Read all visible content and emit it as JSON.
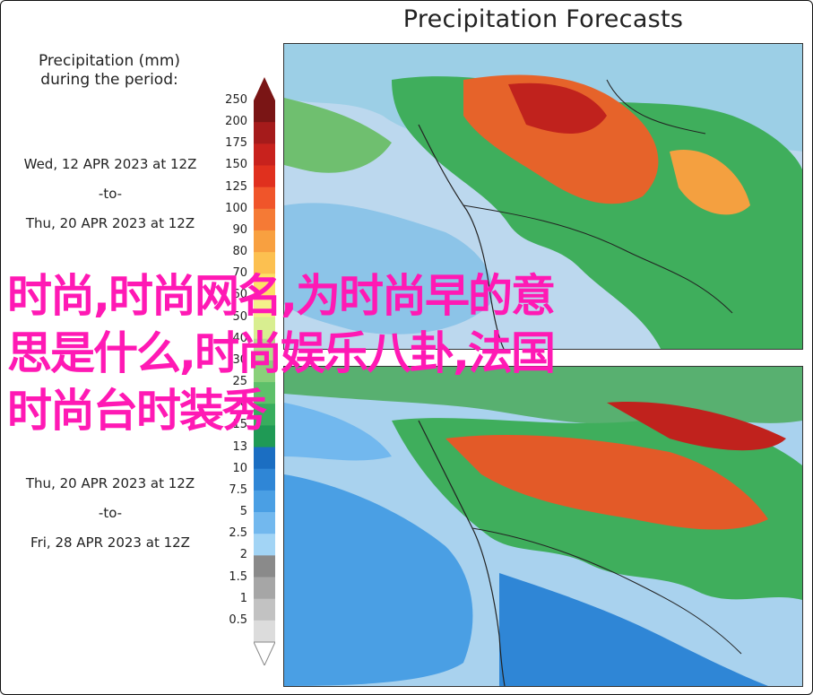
{
  "title": "Precipitation Forecasts",
  "legend": {
    "header_line1": "Precipitation (mm)",
    "header_line2": "during the period:",
    "periods": [
      {
        "start": "Wed, 12 APR 2023 at 12Z",
        "sep": "-to-",
        "end": "Thu, 20 APR 2023 at 12Z"
      },
      {
        "start": "Thu, 20 APR 2023 at 12Z",
        "sep": "-to-",
        "end": "Fri, 28 APR 2023 at 12Z"
      }
    ],
    "ticks": [
      "250",
      "200",
      "175",
      "150",
      "125",
      "100",
      "90",
      "80",
      "70",
      "60",
      "50",
      "40",
      "30",
      "25",
      "20",
      "15",
      "13",
      "10",
      "7.5",
      "5",
      "2.5",
      "2",
      "1.5",
      "1",
      "0.5"
    ],
    "colors": [
      "#7a1515",
      "#a51b1b",
      "#c8221d",
      "#e0301e",
      "#f0552a",
      "#f57a35",
      "#f8a040",
      "#fcc050",
      "#fde066",
      "#f4f08a",
      "#d8ee90",
      "#b2e08a",
      "#8ad07a",
      "#5ec06a",
      "#38ad5e",
      "#1f9a55",
      "#1b6ec2",
      "#2f86d6",
      "#4a9fe4",
      "#72b8ee",
      "#a2d4f5",
      "#8a8a8a",
      "#a6a6a6",
      "#c2c2c2",
      "#dcdcdc"
    ]
  },
  "overlay_text": {
    "line1": "时尚,时尚网名,为时尚早的意",
    "line2": "思是什么,时尚娱乐八卦,法国",
    "line3": "时尚台时装秀"
  }
}
